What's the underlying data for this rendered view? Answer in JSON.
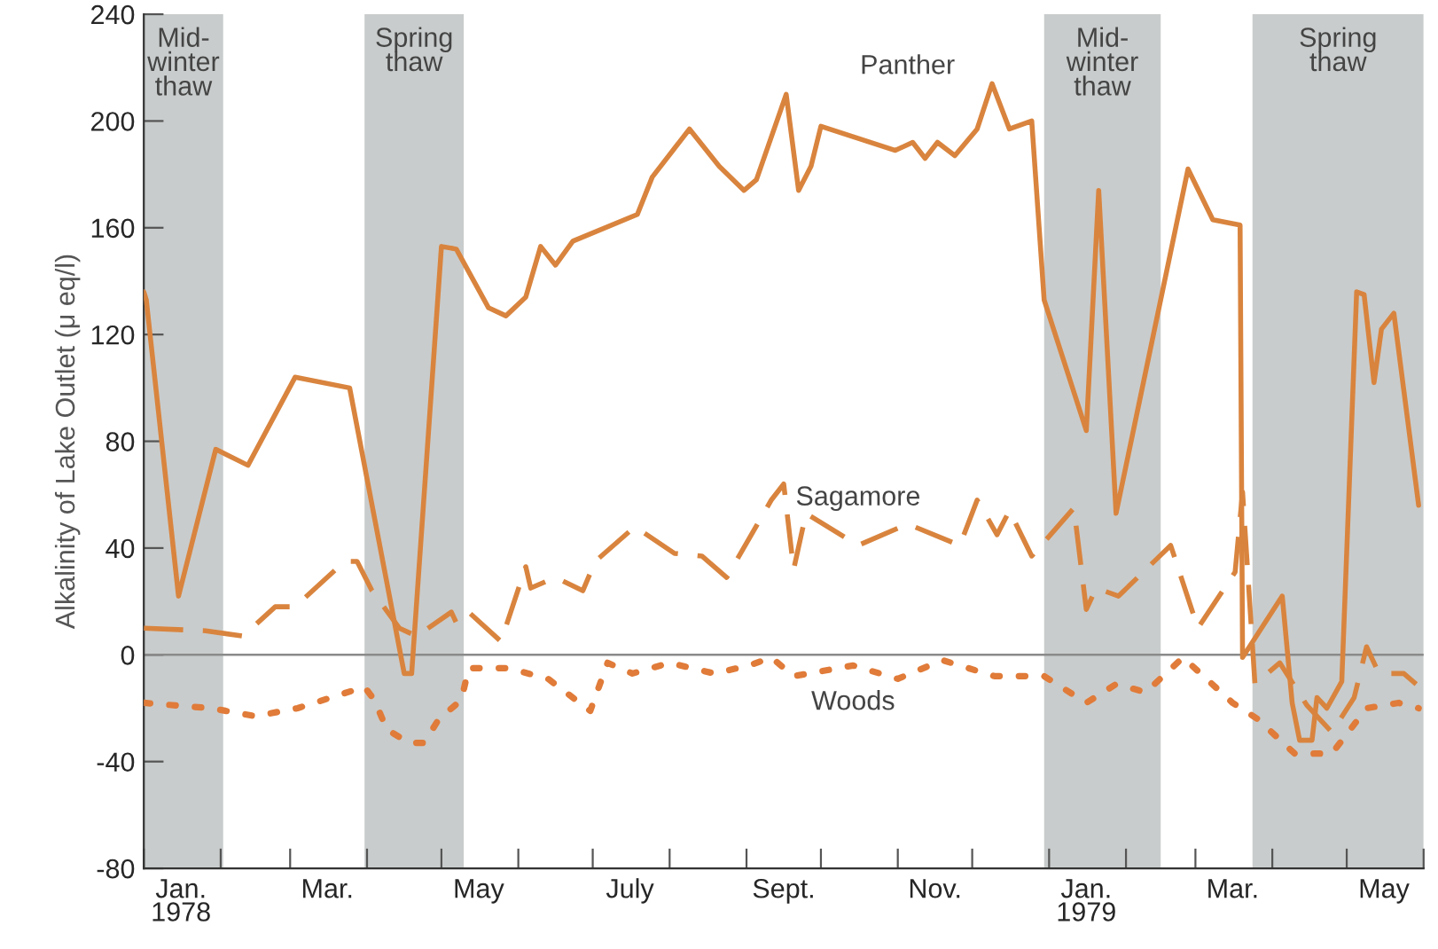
{
  "chart_data": {
    "type": "line",
    "ylabel": "Alkalinity of Lake Outlet (μ eq/l)",
    "xlim": [
      "1978-01-01",
      "1979-06-01"
    ],
    "ylim": [
      -80,
      240
    ],
    "yticks": [
      -80,
      -40,
      0,
      40,
      80,
      120,
      160,
      200,
      240
    ],
    "xticks": [
      {
        "value": "1978-01-01",
        "label": null
      },
      {
        "value": "1978-02-01",
        "label": null
      },
      {
        "value": "1978-03-01",
        "label": null
      },
      {
        "value": "1978-04-01",
        "label": null
      },
      {
        "value": "1978-05-01",
        "label": null
      },
      {
        "value": "1978-06-01",
        "label": null
      },
      {
        "value": "1978-07-01",
        "label": null
      },
      {
        "value": "1978-08-01",
        "label": null
      },
      {
        "value": "1978-09-01",
        "label": null
      },
      {
        "value": "1978-10-01",
        "label": null
      },
      {
        "value": "1978-11-01",
        "label": null
      },
      {
        "value": "1978-12-01",
        "label": null
      },
      {
        "value": "1979-01-01",
        "label": null
      },
      {
        "value": "1979-02-01",
        "label": null
      },
      {
        "value": "1979-03-01",
        "label": null
      },
      {
        "value": "1979-04-01",
        "label": null
      },
      {
        "value": "1979-05-01",
        "label": null
      },
      {
        "value": "1979-06-01",
        "label": null
      },
      {
        "value": "1978-01-16",
        "label": "Jan.\n1978"
      },
      {
        "value": "1978-03-16",
        "label": "Mar."
      },
      {
        "value": "1978-05-16",
        "label": "May"
      },
      {
        "value": "1978-07-16",
        "label": "July"
      },
      {
        "value": "1978-09-16",
        "label": "Sept."
      },
      {
        "value": "1978-11-16",
        "label": "Nov."
      },
      {
        "value": "1979-01-16",
        "label": "Jan.\n1979"
      },
      {
        "value": "1979-03-16",
        "label": "Mar."
      },
      {
        "value": "1979-05-16",
        "label": "May"
      }
    ],
    "grid": false,
    "legend": false,
    "ref_lines": [
      {
        "axis": "y",
        "value": 0,
        "color": "#8a8a8a"
      }
    ],
    "bands": [
      {
        "axis": "x",
        "from": "1978-01-01",
        "to": "1978-02-02",
        "label": "Mid-\nwinter\nthaw",
        "color": "#c9cccc"
      },
      {
        "axis": "x",
        "from": "1978-03-31",
        "to": "1978-05-10",
        "label": "Spring\nthaw",
        "color": "#c9cccc"
      },
      {
        "axis": "x",
        "from": "1978-12-30",
        "to": "1979-02-15",
        "label": "Mid-\nwinter\nthaw",
        "color": "#c9cccc"
      },
      {
        "axis": "x",
        "from": "1979-03-24",
        "to": "1979-06-01",
        "label": "Spring\nthaw",
        "color": "#c9cccc"
      }
    ],
    "series": [
      {
        "name": "Panther",
        "color": "#d9843e",
        "line_style": "solid",
        "x": [
          "1978-01-01",
          "1978-01-02",
          "1978-01-15",
          "1978-01-30",
          "1978-02-12",
          "1978-03-03",
          "1978-03-25",
          "1978-04-16",
          "1978-04-19",
          "1978-05-01",
          "1978-05-07",
          "1978-05-20",
          "1978-05-27",
          "1978-06-04",
          "1978-06-10",
          "1978-06-16",
          "1978-06-23",
          "1978-07-19",
          "1978-07-25",
          "1978-08-09",
          "1978-08-21",
          "1978-08-31",
          "1978-09-05",
          "1978-09-17",
          "1978-09-22",
          "1978-09-27",
          "1978-10-01",
          "1978-10-31",
          "1978-11-07",
          "1978-11-12",
          "1978-11-17",
          "1978-11-24",
          "1978-12-03",
          "1978-12-09",
          "1978-12-16",
          "1978-12-25",
          "1978-12-30",
          "1979-01-16",
          "1979-01-21",
          "1979-01-28",
          "1979-02-26",
          "1979-03-08",
          "1979-03-19",
          "1979-03-20",
          "1979-04-05",
          "1979-04-09",
          "1979-04-12",
          "1979-04-17",
          "1979-04-19",
          "1979-04-23",
          "1979-04-29",
          "1979-05-05",
          "1979-05-08",
          "1979-05-12",
          "1979-05-15",
          "1979-05-20",
          "1979-05-30"
        ],
        "values": [
          136,
          133,
          22,
          77,
          71,
          104,
          100,
          -7,
          -7,
          153,
          152,
          130,
          127,
          134,
          153,
          146,
          155,
          165,
          179,
          197,
          183,
          174,
          178,
          210,
          174,
          183,
          198,
          189,
          192,
          186,
          192,
          187,
          197,
          214,
          197,
          200,
          133,
          84,
          174,
          53,
          182,
          163,
          161,
          -1,
          22,
          -18,
          -32,
          -32,
          -16,
          -20,
          -10,
          136,
          135,
          102,
          122,
          128,
          56
        ]
      },
      {
        "name": "Sagamore",
        "color": "#d9843e",
        "line_style": "dashed",
        "x": [
          "1978-01-01",
          "1978-01-26",
          "1978-02-10",
          "1978-02-23",
          "1978-03-03",
          "1978-03-23",
          "1978-03-28",
          "1978-04-03",
          "1978-04-14",
          "1978-04-21",
          "1978-05-05",
          "1978-05-07",
          "1978-05-12",
          "1978-05-25",
          "1978-06-04",
          "1978-06-06",
          "1978-06-16",
          "1978-06-27",
          "1978-07-02",
          "1978-07-18",
          "1978-08-03",
          "1978-08-14",
          "1978-08-24",
          "1978-09-11",
          "1978-09-16",
          "1978-09-20",
          "1978-09-25",
          "1978-10-16",
          "1978-11-05",
          "1978-11-26",
          "1978-12-03",
          "1978-12-11",
          "1978-12-16",
          "1978-12-25",
          "1979-01-11",
          "1979-01-16",
          "1979-01-20",
          "1979-01-29",
          "1979-02-19",
          "1979-03-02",
          "1979-03-17",
          "1979-03-20",
          "1979-03-25",
          "1979-04-04",
          "1979-04-15",
          "1979-04-25",
          "1979-05-04",
          "1979-05-09",
          "1979-05-14",
          "1979-05-24",
          "1979-05-29"
        ],
        "values": [
          10,
          9,
          7,
          18,
          18,
          35,
          35,
          24,
          10,
          7,
          16,
          12,
          16,
          5,
          33,
          25,
          29,
          24,
          35,
          48,
          38,
          37,
          29,
          58,
          64,
          32,
          53,
          41,
          49,
          41,
          58,
          45,
          54,
          37,
          55,
          17,
          25,
          22,
          41,
          10,
          31,
          61,
          -11,
          -3,
          -19,
          -29,
          -16,
          3,
          -7,
          -7,
          -11
        ]
      },
      {
        "name": "Woods",
        "color": "#e07b39",
        "line_style": "dotted",
        "x": [
          "1978-01-01",
          "1978-01-28",
          "1978-02-15",
          "1978-03-04",
          "1978-03-31",
          "1978-04-04",
          "1978-04-09",
          "1978-04-18",
          "1978-04-24",
          "1978-04-30",
          "1978-05-09",
          "1978-05-12",
          "1978-05-28",
          "1978-06-13",
          "1978-06-30",
          "1978-07-07",
          "1978-07-17",
          "1978-08-01",
          "1978-08-19",
          "1978-09-02",
          "1978-09-11",
          "1978-09-20",
          "1978-10-14",
          "1978-11-01",
          "1978-11-19",
          "1978-12-10",
          "1978-12-30",
          "1979-01-16",
          "1979-01-28",
          "1979-02-09",
          "1979-02-24",
          "1979-03-16",
          "1979-03-26",
          "1979-04-10",
          "1979-04-25",
          "1979-05-09",
          "1979-05-22",
          "1979-05-30"
        ],
        "values": [
          -18,
          -20,
          -23,
          -20,
          -12,
          -17,
          -28,
          -33,
          -33,
          -24,
          -17,
          -5,
          -5,
          -9,
          -21,
          -3,
          -7,
          -3,
          -7,
          -4,
          -1,
          -8,
          -4,
          -9,
          -2,
          -8,
          -8,
          -18,
          -11,
          -14,
          -1,
          -18,
          -24,
          -37,
          -37,
          -20,
          -18,
          -20
        ]
      }
    ]
  }
}
